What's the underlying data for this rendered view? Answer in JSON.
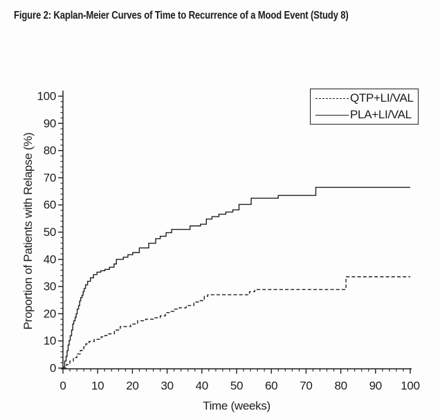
{
  "figure": {
    "title": "Figure 2: Kaplan-Meier Curves of Time to Recurrence of a Mood Event (Study 8)"
  },
  "chart_data": {
    "type": "line",
    "subtype": "kaplan-meier-step",
    "title": "Figure 2: Kaplan-Meier Curves of Time to Recurrence of a Mood Event (Study 8)",
    "xlabel": "Time (weeks)",
    "ylabel": "Proportion of Patients with Relapse (%)",
    "xlim": [
      0,
      100
    ],
    "ylim": [
      0,
      100
    ],
    "x_ticks": [
      0,
      10,
      20,
      30,
      40,
      50,
      60,
      70,
      80,
      90,
      100
    ],
    "y_ticks": [
      0,
      10,
      20,
      30,
      40,
      50,
      60,
      70,
      80,
      90,
      100
    ],
    "minor_tick_step": 2,
    "grid": false,
    "legend_position": "top-right",
    "colors": {
      "line": "#1f1f1f",
      "background": "#fdfdfd",
      "text": "#1c1c1c"
    },
    "legend": [
      {
        "label": "QTP+LI/VAL",
        "style": "dashed"
      },
      {
        "label": "PLA+LI/VAL",
        "style": "solid"
      }
    ],
    "series": [
      {
        "name": "QTP+LI/VAL",
        "style": "dashed",
        "points": [
          [
            0,
            0
          ],
          [
            1,
            1.3
          ],
          [
            2,
            2.6
          ],
          [
            3,
            3.9
          ],
          [
            4,
            5.2
          ],
          [
            5,
            6.5
          ],
          [
            6,
            7.8
          ],
          [
            6.6,
            8.9
          ],
          [
            7.5,
            9.8
          ],
          [
            9,
            10.6
          ],
          [
            11,
            11.5
          ],
          [
            12.1,
            12
          ],
          [
            13,
            12.6
          ],
          [
            14.8,
            14
          ],
          [
            16.5,
            15.3
          ],
          [
            19.5,
            16.2
          ],
          [
            21.5,
            17.4
          ],
          [
            23.8,
            18
          ],
          [
            26,
            18.5
          ],
          [
            28,
            19.2
          ],
          [
            29.5,
            20.4
          ],
          [
            30.8,
            20.9
          ],
          [
            32,
            21.7
          ],
          [
            33.5,
            22.2
          ],
          [
            35.5,
            23
          ],
          [
            37.7,
            24.3
          ],
          [
            39.2,
            24.8
          ],
          [
            40.7,
            26.4
          ],
          [
            41.7,
            27
          ],
          [
            53.7,
            28.1
          ],
          [
            55.2,
            28.9
          ],
          [
            81.5,
            33.6
          ],
          [
            100,
            33.6
          ]
        ]
      },
      {
        "name": "PLA+LI/VAL",
        "style": "solid",
        "points": [
          [
            0,
            0.4
          ],
          [
            0.5,
            2.6
          ],
          [
            0.9,
            4.3
          ],
          [
            1.2,
            6.4
          ],
          [
            1.5,
            8.5
          ],
          [
            1.8,
            10.2
          ],
          [
            2.1,
            11.9
          ],
          [
            2.5,
            14
          ],
          [
            2.8,
            16.2
          ],
          [
            3.1,
            17.4
          ],
          [
            3.5,
            18.7
          ],
          [
            3.8,
            20
          ],
          [
            4.1,
            21.7
          ],
          [
            4.5,
            23
          ],
          [
            4.8,
            24.7
          ],
          [
            5.1,
            25.9
          ],
          [
            5.5,
            26.8
          ],
          [
            5.8,
            28.1
          ],
          [
            6.1,
            29.3
          ],
          [
            6.5,
            30.6
          ],
          [
            7.1,
            31.9
          ],
          [
            7.9,
            33.2
          ],
          [
            8.8,
            34.4
          ],
          [
            9.8,
            35.3
          ],
          [
            10.9,
            35.8
          ],
          [
            12.1,
            36.3
          ],
          [
            13.4,
            37.1
          ],
          [
            14.7,
            38.3
          ],
          [
            15.4,
            40
          ],
          [
            17.4,
            40.8
          ],
          [
            18.7,
            41.7
          ],
          [
            20.1,
            42.5
          ],
          [
            22,
            44.2
          ],
          [
            24.7,
            45.9
          ],
          [
            26.7,
            47.6
          ],
          [
            28,
            48.5
          ],
          [
            29.7,
            49.8
          ],
          [
            31.3,
            51
          ],
          [
            36.6,
            52.3
          ],
          [
            39.6,
            52.9
          ],
          [
            41.3,
            54.8
          ],
          [
            42.9,
            55.7
          ],
          [
            44.9,
            56.6
          ],
          [
            46.9,
            57.4
          ],
          [
            48.9,
            58.2
          ],
          [
            50.7,
            60.2
          ],
          [
            54.2,
            62.5
          ],
          [
            62,
            63.5
          ],
          [
            72.8,
            66.5
          ],
          [
            100,
            66.5
          ]
        ]
      }
    ]
  }
}
